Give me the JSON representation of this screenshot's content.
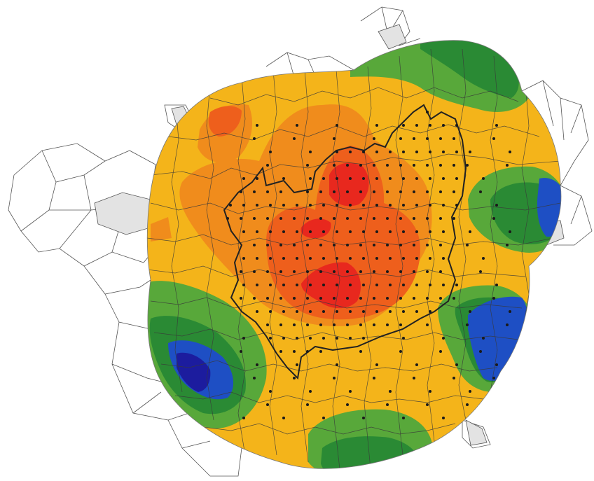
{
  "map": {
    "type": "contour-heatmap",
    "grid_dots": "on",
    "municipality_outlines": "on",
    "colors": {
      "background": "#ffffff",
      "outer_region_fill": "#ffffff",
      "grey_region_fill": "#e3e3e3",
      "boundary_stroke": "#3a3a3a",
      "thick_boundary_stroke": "#222222",
      "dot": "#1a1a1a",
      "levels": [
        "#1c1c9e",
        "#1e4fc4",
        "#2a8a34",
        "#58a83a",
        "#f4b41a",
        "#f08c1c",
        "#ee5f1c",
        "#e8281e"
      ]
    }
  }
}
